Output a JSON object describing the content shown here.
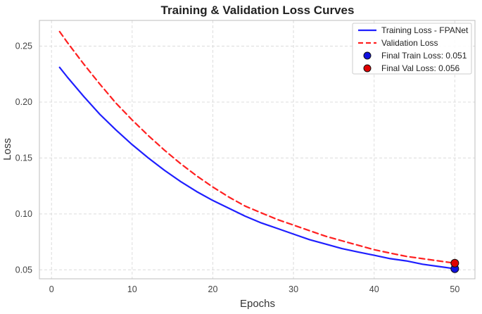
{
  "chart_data": {
    "type": "line",
    "title": "Training & Validation Loss Curves",
    "xlabel": "Epochs",
    "ylabel": "Loss",
    "xlim": [
      -1.5,
      52.5
    ],
    "ylim": [
      0.042,
      0.273
    ],
    "xticks": [
      0,
      10,
      20,
      30,
      40,
      50
    ],
    "xtick_labels": [
      "0",
      "10",
      "20",
      "30",
      "40",
      "50"
    ],
    "yticks": [
      0.05,
      0.1,
      0.15,
      0.2,
      0.25
    ],
    "ytick_labels": [
      "0.05",
      "0.10",
      "0.15",
      "0.20",
      "0.25"
    ],
    "grid": true,
    "legend_position": "top-right",
    "series": [
      {
        "name": "Training Loss - FPANet",
        "style": "solid",
        "color": "#1f1fff",
        "x": [
          1,
          2,
          4,
          6,
          8,
          10,
          12,
          14,
          16,
          18,
          20,
          22,
          24,
          26,
          28,
          30,
          32,
          34,
          36,
          38,
          40,
          42,
          44,
          46,
          48,
          50
        ],
        "values": [
          0.231,
          0.222,
          0.205,
          0.189,
          0.175,
          0.162,
          0.15,
          0.139,
          0.129,
          0.12,
          0.112,
          0.105,
          0.098,
          0.092,
          0.087,
          0.082,
          0.077,
          0.073,
          0.069,
          0.066,
          0.063,
          0.06,
          0.058,
          0.055,
          0.053,
          0.051
        ]
      },
      {
        "name": "Validation Loss",
        "style": "dashed",
        "color": "#ff2020",
        "x": [
          1,
          2,
          4,
          6,
          8,
          10,
          12,
          14,
          16,
          18,
          20,
          22,
          24,
          26,
          28,
          30,
          32,
          34,
          36,
          38,
          40,
          42,
          44,
          46,
          48,
          50
        ],
        "values": [
          0.263,
          0.253,
          0.234,
          0.216,
          0.199,
          0.184,
          0.17,
          0.157,
          0.145,
          0.134,
          0.124,
          0.115,
          0.107,
          0.101,
          0.095,
          0.09,
          0.085,
          0.08,
          0.076,
          0.072,
          0.068,
          0.065,
          0.062,
          0.06,
          0.058,
          0.056
        ]
      }
    ],
    "markers": [
      {
        "name": "Final Train Loss: 0.051",
        "x": 50,
        "y": 0.051,
        "color": "#1010e0"
      },
      {
        "name": "Final Val Loss: 0.056",
        "x": 50,
        "y": 0.056,
        "color": "#e00000"
      }
    ]
  }
}
